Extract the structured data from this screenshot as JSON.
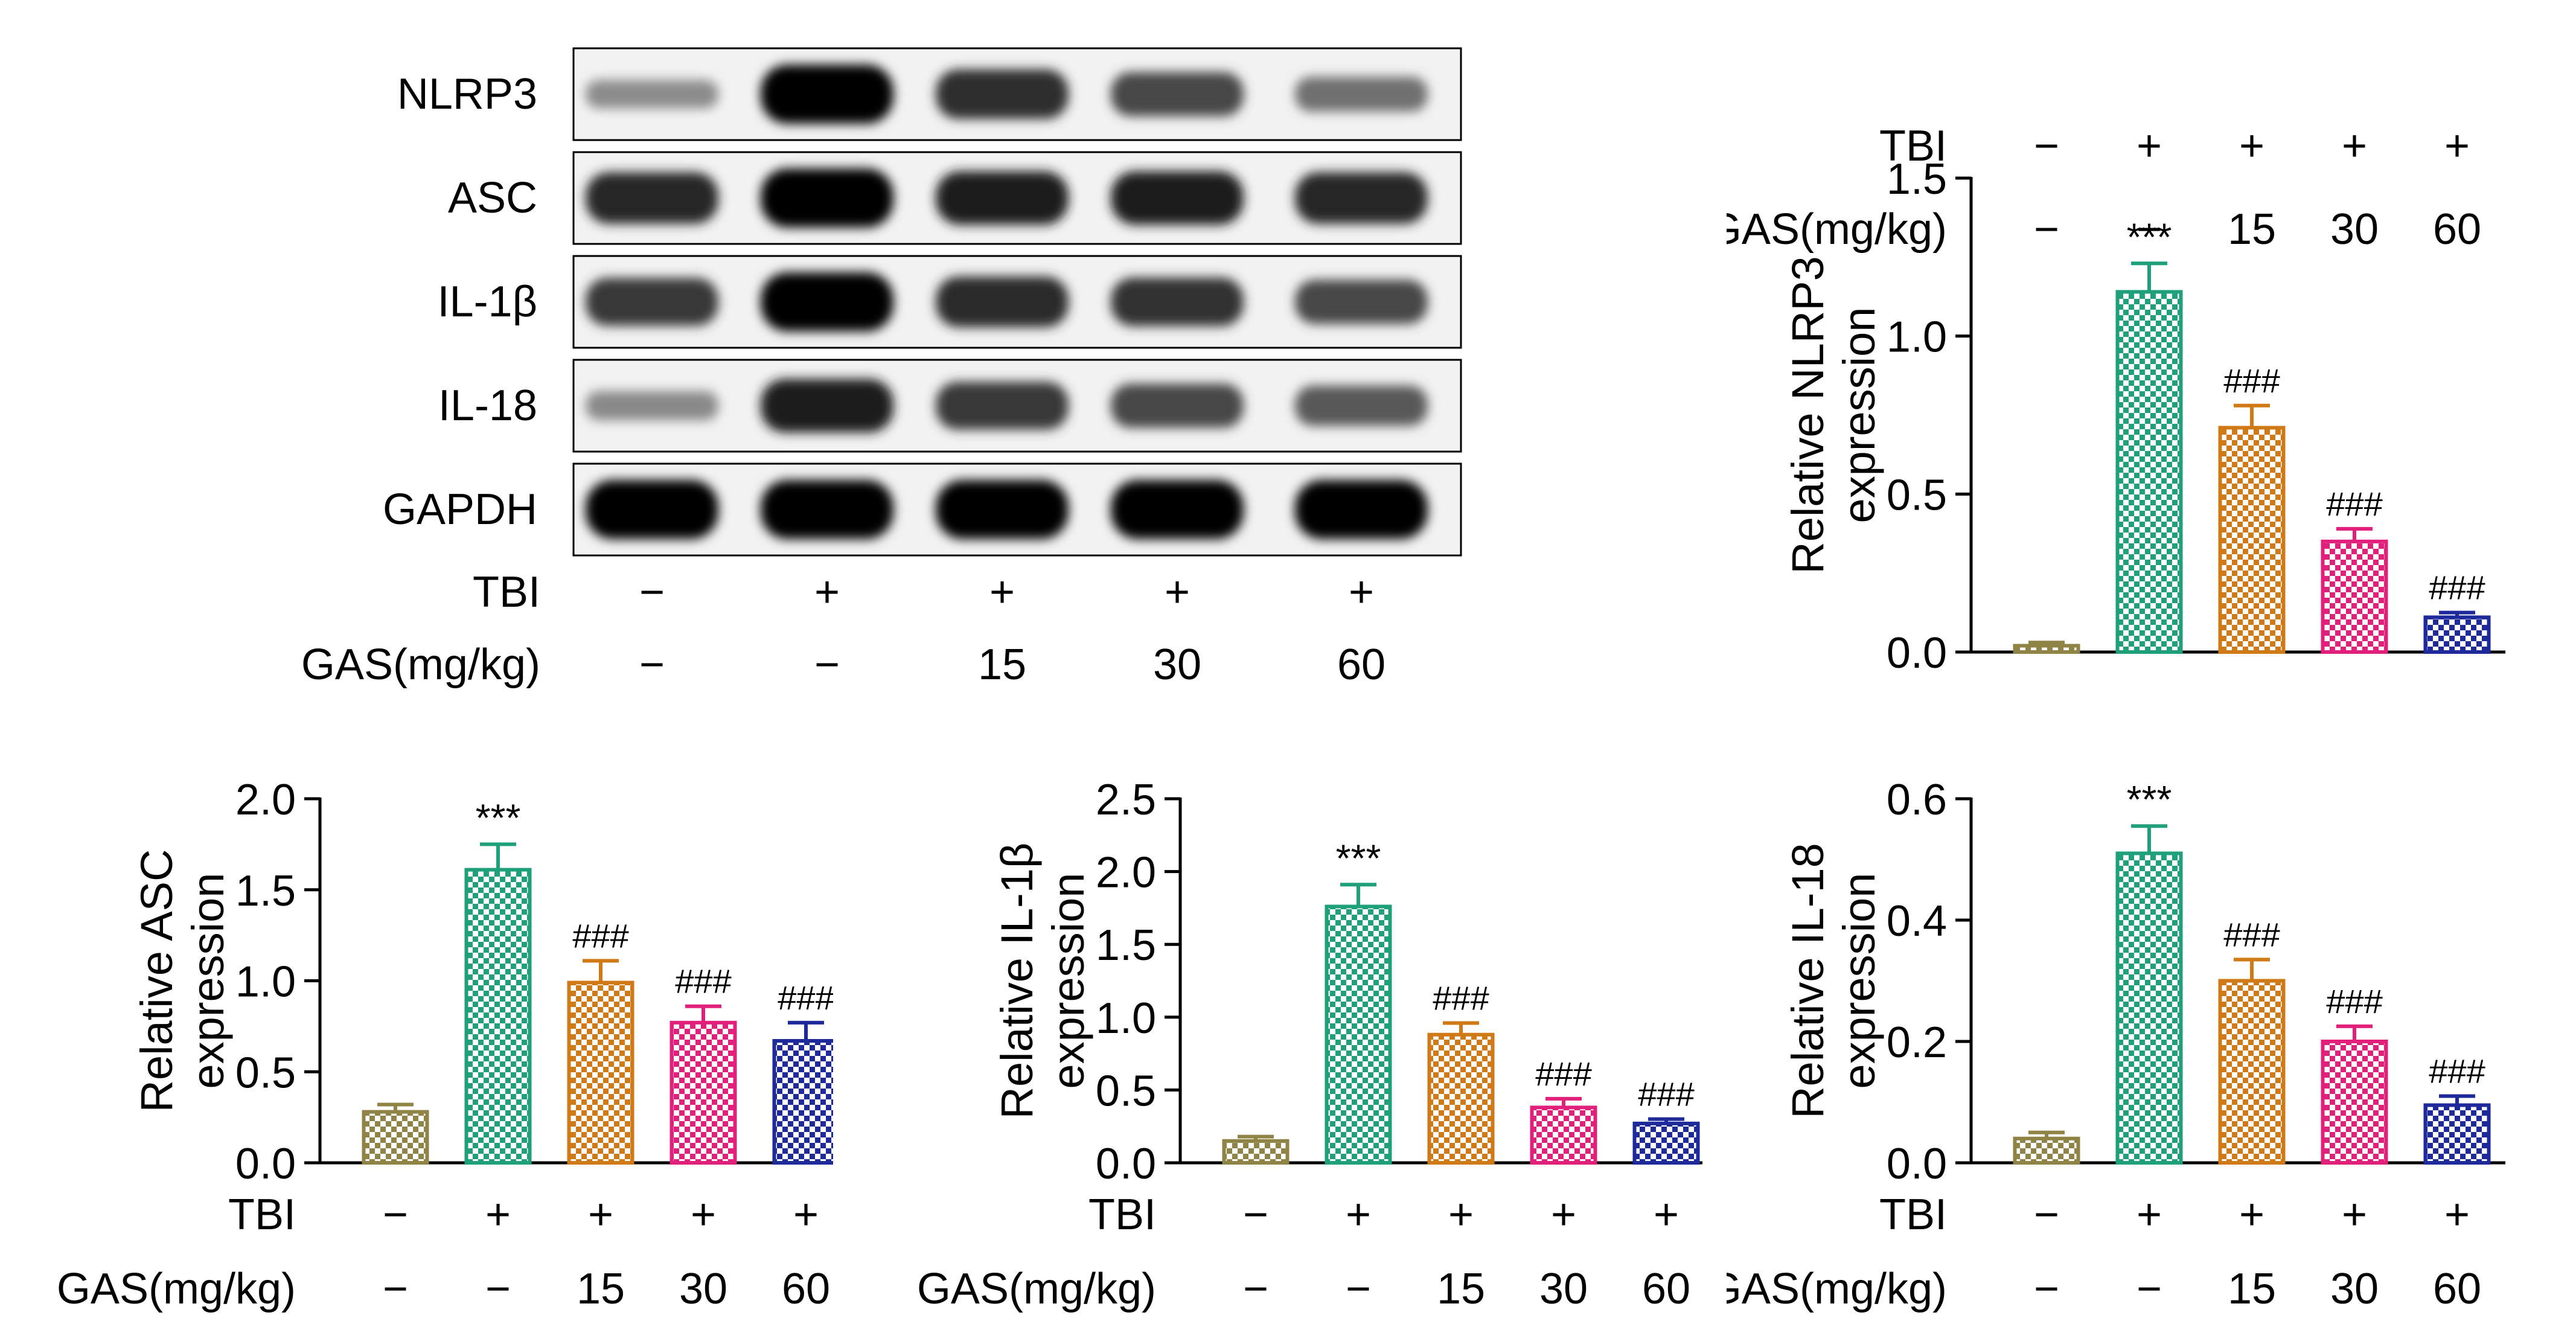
{
  "western_blot": {
    "proteins": [
      "NLRP3",
      "ASC",
      "IL-1β",
      "IL-18",
      "GAPDH"
    ],
    "band_intensity": [
      [
        0.18,
        1.0,
        0.75,
        0.6,
        0.35
      ],
      [
        0.8,
        1.0,
        0.85,
        0.85,
        0.8
      ],
      [
        0.7,
        1.0,
        0.78,
        0.72,
        0.6
      ],
      [
        0.2,
        0.85,
        0.7,
        0.6,
        0.5
      ],
      [
        1.0,
        1.0,
        1.0,
        1.0,
        1.0
      ]
    ],
    "conditions": {
      "tbi_label": "TBI",
      "tbi": [
        "−",
        "+",
        "+",
        "+",
        "+"
      ],
      "gas_label": "GAS(mg/kg)",
      "gas": [
        "−",
        "−",
        "15",
        "30",
        "60"
      ]
    }
  },
  "chart_data": [
    {
      "type": "bar",
      "ylabel_line1": "Relative NLRP3",
      "ylabel_line2": "expression",
      "ylim": [
        0,
        1.5
      ],
      "yticks": [
        "0.0",
        "0.5",
        "1.0",
        "1.5"
      ],
      "tick_values": [
        0,
        0.5,
        1.0,
        1.5
      ],
      "values": [
        0.02,
        1.14,
        0.71,
        0.35,
        0.11
      ],
      "errors": [
        0.01,
        0.09,
        0.07,
        0.04,
        0.015
      ],
      "annotations": [
        "",
        "***",
        "###",
        "###",
        "###"
      ],
      "tbi_label": "TBI",
      "tbi": [
        "−",
        "+",
        "+",
        "+",
        "+"
      ],
      "gas_label": "GAS(mg/kg)",
      "gas": [
        "−",
        "−",
        "15",
        "30",
        "60"
      ]
    },
    {
      "type": "bar",
      "ylabel_line1": "Relative ASC",
      "ylabel_line2": "expression",
      "ylim": [
        0,
        2.0
      ],
      "yticks": [
        "0.0",
        "0.5",
        "1.0",
        "1.5",
        "2.0"
      ],
      "tick_values": [
        0,
        0.5,
        1.0,
        1.5,
        2.0
      ],
      "values": [
        0.28,
        1.61,
        0.99,
        0.77,
        0.67
      ],
      "errors": [
        0.04,
        0.14,
        0.12,
        0.09,
        0.1
      ],
      "annotations": [
        "",
        "***",
        "###",
        "###",
        "###"
      ],
      "tbi_label": "TBI",
      "tbi": [
        "−",
        "+",
        "+",
        "+",
        "+"
      ],
      "gas_label": "GAS(mg/kg)",
      "gas": [
        "−",
        "−",
        "15",
        "30",
        "60"
      ]
    },
    {
      "type": "bar",
      "ylabel_line1": "Relative IL-1β",
      "ylabel_line2": "expression",
      "ylim": [
        0,
        2.5
      ],
      "yticks": [
        "0.0",
        "0.5",
        "1.0",
        "1.5",
        "2.0",
        "2.5"
      ],
      "tick_values": [
        0,
        0.5,
        1.0,
        1.5,
        2.0,
        2.5
      ],
      "values": [
        0.15,
        1.76,
        0.88,
        0.38,
        0.27
      ],
      "errors": [
        0.03,
        0.15,
        0.08,
        0.06,
        0.03
      ],
      "annotations": [
        "",
        "***",
        "###",
        "###",
        "###"
      ],
      "tbi_label": "TBI",
      "tbi": [
        "−",
        "+",
        "+",
        "+",
        "+"
      ],
      "gas_label": "GAS(mg/kg)",
      "gas": [
        "−",
        "−",
        "15",
        "30",
        "60"
      ]
    },
    {
      "type": "bar",
      "ylabel_line1": "Relative IL-18",
      "ylabel_line2": "expression",
      "ylim": [
        0,
        0.6
      ],
      "yticks": [
        "0.0",
        "0.2",
        "0.4",
        "0.6"
      ],
      "tick_values": [
        0,
        0.2,
        0.4,
        0.6
      ],
      "values": [
        0.04,
        0.51,
        0.3,
        0.2,
        0.095
      ],
      "errors": [
        0.01,
        0.045,
        0.035,
        0.025,
        0.015
      ],
      "annotations": [
        "",
        "***",
        "###",
        "###",
        "###"
      ],
      "tbi_label": "TBI",
      "tbi": [
        "−",
        "+",
        "+",
        "+",
        "+"
      ],
      "gas_label": "GAS(mg/kg)",
      "gas": [
        "−",
        "−",
        "15",
        "30",
        "60"
      ]
    }
  ],
  "colors": {
    "groups": [
      "#8f8446",
      "#1fa07a",
      "#cf7a16",
      "#e0207a",
      "#1e2a99"
    ]
  }
}
